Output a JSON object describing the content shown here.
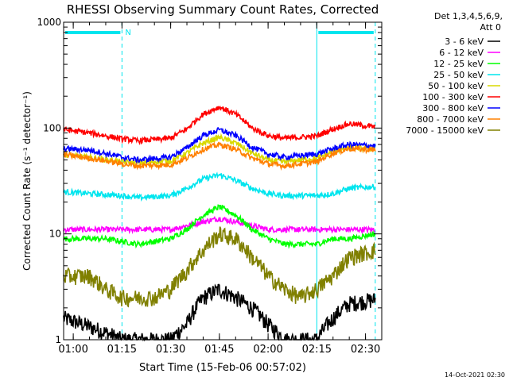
{
  "chart_data": {
    "type": "line",
    "title": "RHESSI Observing Summary Count Rates, Corrected",
    "xlabel": "Start Time (15-Feb-06 00:57:02)",
    "ylabel": "Corrected Count Rate (s⁻¹ detector⁻¹)",
    "y_scale": "log",
    "ylim": [
      1,
      1000
    ],
    "xlim": [
      "00:57:02",
      "02:35:00"
    ],
    "x_ticks": [
      "01:00",
      "01:15",
      "01:30",
      "01:45",
      "02:00",
      "02:15",
      "02:30"
    ],
    "y_ticks": [
      "1",
      "10",
      "100",
      "1000"
    ],
    "grid": false,
    "legend_position": "right",
    "legend_header": [
      "Det 1,3,4,5,6,9,",
      "Att 0"
    ],
    "annotations": {
      "n_label": "N",
      "night_intervals": [
        [
          "00:57:02",
          "01:15"
        ],
        [
          "02:15",
          "02:33"
        ]
      ],
      "saa_or_night_marker_color": "#00e5ee"
    },
    "series": [
      {
        "name": "3 - 6 keV",
        "color": "#000000",
        "x": [
          "00:57",
          "01:15",
          "01:20",
          "01:30",
          "01:35",
          "01:40",
          "01:45",
          "01:50",
          "01:55",
          "02:00",
          "02:05",
          "02:15",
          "02:20",
          "02:25",
          "02:33"
        ],
        "values": [
          1.6,
          1.0,
          1.0,
          1.0,
          1.4,
          2.5,
          3.0,
          2.5,
          2.0,
          1.4,
          1.0,
          1.0,
          1.6,
          2.2,
          2.4
        ]
      },
      {
        "name": "6 - 12 keV",
        "color": "#ff00ff",
        "x": [
          "00:57",
          "01:10",
          "01:20",
          "01:30",
          "01:35",
          "01:40",
          "01:45",
          "01:50",
          "01:55",
          "02:00",
          "02:05",
          "02:15",
          "02:20",
          "02:25",
          "02:33"
        ],
        "values": [
          11,
          11,
          11,
          11,
          12,
          13,
          14,
          13,
          12,
          11,
          11,
          11,
          11,
          11,
          11
        ]
      },
      {
        "name": "12 - 25 keV",
        "color": "#00ff00",
        "x": [
          "00:57",
          "01:10",
          "01:20",
          "01:30",
          "01:35",
          "01:40",
          "01:45",
          "01:50",
          "01:55",
          "02:00",
          "02:05",
          "02:15",
          "02:20",
          "02:25",
          "02:33"
        ],
        "values": [
          9,
          9,
          8,
          9,
          11,
          15,
          18,
          15,
          11,
          9,
          8,
          8,
          9,
          9,
          10
        ]
      },
      {
        "name": "25 - 50 keV",
        "color": "#00e5ee",
        "x": [
          "00:57",
          "01:05",
          "01:15",
          "01:20",
          "01:30",
          "01:35",
          "01:40",
          "01:45",
          "01:50",
          "01:55",
          "02:00",
          "02:05",
          "02:15",
          "02:20",
          "02:25",
          "02:33"
        ],
        "values": [
          25,
          24,
          23,
          22,
          23,
          27,
          33,
          36,
          32,
          27,
          24,
          23,
          23,
          24,
          27,
          28
        ]
      },
      {
        "name": "50 - 100 keV",
        "color": "#d9d900",
        "x": [
          "00:57",
          "01:05",
          "01:15",
          "01:20",
          "01:30",
          "01:35",
          "01:40",
          "01:45",
          "01:50",
          "01:55",
          "02:00",
          "02:05",
          "02:15",
          "02:20",
          "02:25",
          "02:33"
        ],
        "values": [
          56,
          53,
          48,
          47,
          49,
          58,
          72,
          82,
          72,
          58,
          50,
          48,
          52,
          60,
          65,
          64
        ]
      },
      {
        "name": "100 - 300 keV",
        "color": "#ff0000",
        "x": [
          "00:57",
          "01:05",
          "01:15",
          "01:20",
          "01:30",
          "01:35",
          "01:40",
          "01:45",
          "01:50",
          "01:55",
          "02:00",
          "02:05",
          "02:15",
          "02:20",
          "02:25",
          "02:33"
        ],
        "values": [
          97,
          90,
          79,
          76,
          80,
          98,
          135,
          158,
          135,
          100,
          85,
          80,
          84,
          98,
          110,
          102
        ]
      },
      {
        "name": "300 - 800 keV",
        "color": "#0000ff",
        "x": [
          "00:57",
          "01:05",
          "01:15",
          "01:20",
          "01:30",
          "01:35",
          "01:40",
          "01:45",
          "01:50",
          "01:55",
          "02:00",
          "02:05",
          "02:15",
          "02:20",
          "02:25",
          "02:33"
        ],
        "values": [
          64,
          62,
          53,
          50,
          53,
          65,
          85,
          96,
          85,
          66,
          57,
          53,
          57,
          64,
          70,
          68
        ]
      },
      {
        "name": "800 - 7000 keV",
        "color": "#ff8000",
        "x": [
          "00:57",
          "01:05",
          "01:15",
          "01:20",
          "01:30",
          "01:35",
          "01:40",
          "01:45",
          "01:50",
          "01:55",
          "02:00",
          "02:05",
          "02:15",
          "02:20",
          "02:25",
          "02:33"
        ],
        "values": [
          56,
          52,
          46,
          44,
          45,
          52,
          63,
          70,
          63,
          52,
          46,
          44,
          48,
          58,
          64,
          62
        ]
      },
      {
        "name": "7000 - 15000 keV",
        "color": "#808000",
        "x": [
          "00:57",
          "01:05",
          "01:10",
          "01:15",
          "01:20",
          "01:25",
          "01:30",
          "01:35",
          "01:40",
          "01:45",
          "01:50",
          "01:55",
          "02:00",
          "02:05",
          "02:10",
          "02:15",
          "02:20",
          "02:25",
          "02:33"
        ],
        "values": [
          4,
          4,
          3,
          2.5,
          2.5,
          2.5,
          3,
          4.5,
          7,
          10,
          9,
          6,
          4,
          3,
          2.5,
          3,
          4,
          6,
          7
        ]
      }
    ],
    "footer_timestamp": "14-Oct-2021 02:30"
  }
}
